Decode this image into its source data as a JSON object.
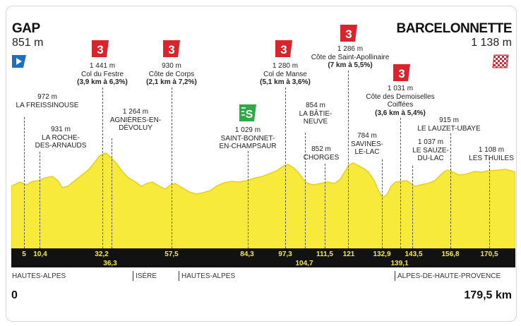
{
  "start": {
    "name": "GAP",
    "altitude": "851 m"
  },
  "finish": {
    "name": "BARCELONNETTE",
    "altitude": "1 138 m"
  },
  "climbs": [
    {
      "category": "3",
      "alt": "1 441 m",
      "name": "Col du Festre",
      "detail": "(3,9 km à 6,3%)"
    },
    {
      "category": "3",
      "alt": "930 m",
      "name": "Côte de Corps",
      "detail": "(2,1 km à 7,2%)"
    },
    {
      "category": "3",
      "alt": "1 280 m",
      "name": "Col de Manse",
      "detail": "(5,1 km à 3,6%)"
    },
    {
      "category": "3",
      "alt": "1 286 m",
      "name": "Côte de Saint-Apollinaire",
      "detail": "(7 km à 5,5%)"
    },
    {
      "category": "3",
      "alt": "1 031 m",
      "name": "Côte des Demoiselles",
      "name2": "Coiffées",
      "detail": "(3,6 km à 5,4%)"
    }
  ],
  "sprint": {
    "label": "S",
    "alt": "1 029 m",
    "name": "SAINT-BONNET-",
    "name2": "EN-CHAMPSAUR"
  },
  "places": [
    {
      "alt": "972 m",
      "name": "LA FREISSINOUSE"
    },
    {
      "alt": "931 m",
      "name": "LA ROCHE-",
      "name2": "DES-ARNAUDS"
    },
    {
      "alt": "1 264 m",
      "name": "AGNIÈRES-EN-",
      "name2": "DÉVOLUY"
    },
    {
      "alt": "854 m",
      "name": "LA BÂTIE-",
      "name2": "NEUVE"
    },
    {
      "alt": "852 m",
      "name": "CHORGES"
    },
    {
      "alt": "784 m",
      "name": "SAVINES-",
      "name2": "LE-LAC"
    },
    {
      "alt": "1 037 m",
      "name": "LE SAUZE-",
      "name2": "DU-LAC"
    },
    {
      "alt": "915 m",
      "name": "LE LAUZET-UBAYE"
    },
    {
      "alt": "1 108 m",
      "name": "LES THUILES"
    }
  ],
  "km_markers": [
    "5",
    "10,4",
    "32,2",
    "36,3",
    "57,5",
    "84,3",
    "97,3",
    "104,7",
    "111,5",
    "121",
    "132,9",
    "139,1",
    "143,5",
    "156,8",
    "170,5"
  ],
  "regions": [
    "HAUTES-ALPES",
    "ISÈRE",
    "HAUTES-ALPES",
    "ALPES-DE-HAUTE-PROVENCE"
  ],
  "distance_start": "0",
  "distance_total": "179,5 km",
  "colors": {
    "profile": "#f7ea3b",
    "profile_edge": "#e7cf1c",
    "climb_badge": "#d9232d",
    "sprint_badge": "#2fa848",
    "start_flag": "#1d6fc4",
    "axis_bar": "#121212"
  }
}
